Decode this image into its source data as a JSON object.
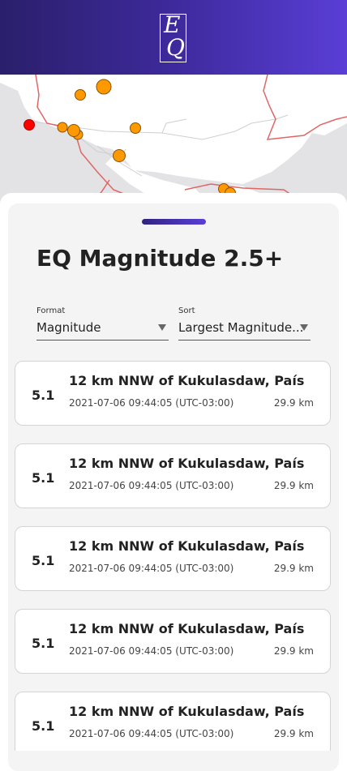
{
  "header": {
    "logo_letters": [
      "E",
      "Q"
    ],
    "accent": "#5a3ed6"
  },
  "map": {
    "markers": [
      {
        "color": "#ff0000",
        "type": "recent"
      },
      {
        "color": "#ff9900",
        "type": "normal"
      }
    ]
  },
  "sheet": {
    "title": "EQ Magnitude 2.5+"
  },
  "filters": {
    "format": {
      "label": "Format",
      "value": "Magnitude"
    },
    "sort": {
      "label": "Sort",
      "value": "Largest Magnitude..."
    }
  },
  "quakes": [
    {
      "magnitude": "5.1",
      "place": "12 km NNW of Kukulasdaw, País",
      "time": "2021-07-06 09:44:05 (UTC-03:00)",
      "depth": "29.9 km"
    },
    {
      "magnitude": "5.1",
      "place": "12 km NNW of Kukulasdaw, País",
      "time": "2021-07-06 09:44:05 (UTC-03:00)",
      "depth": "29.9 km"
    },
    {
      "magnitude": "5.1",
      "place": "12 km NNW of Kukulasdaw, País",
      "time": "2021-07-06 09:44:05 (UTC-03:00)",
      "depth": "29.9 km"
    },
    {
      "magnitude": "5.1",
      "place": "12 km NNW of Kukulasdaw, País",
      "time": "2021-07-06 09:44:05 (UTC-03:00)",
      "depth": "29.9 km"
    },
    {
      "magnitude": "5.1",
      "place": "12 km NNW of Kukulasdaw, País",
      "time": "2021-07-06 09:44:05 (UTC-03:00)",
      "depth": "29.9 km"
    }
  ]
}
